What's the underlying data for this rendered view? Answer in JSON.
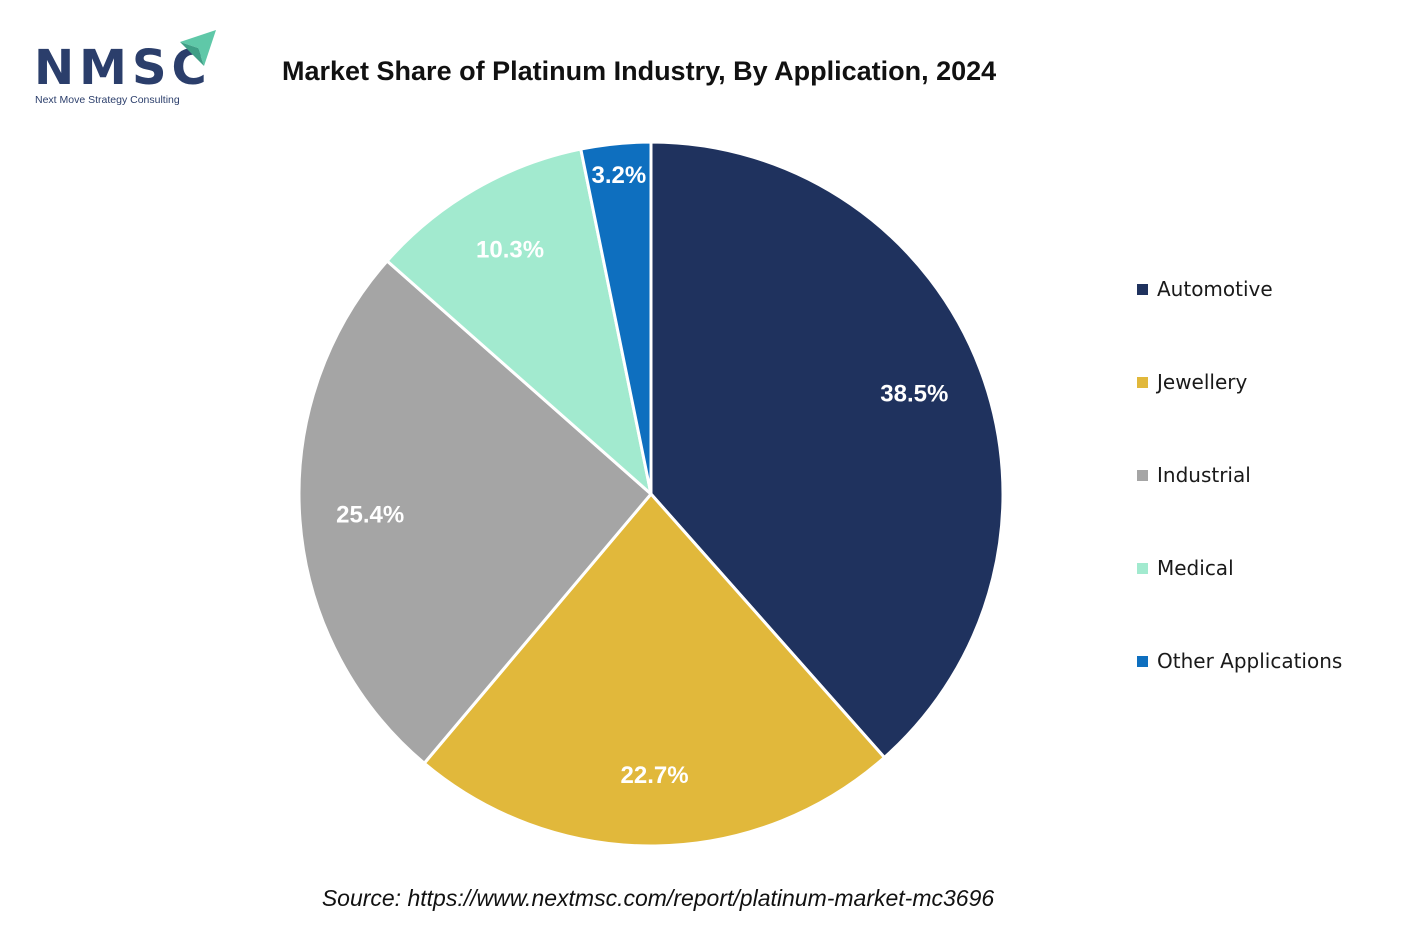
{
  "logo": {
    "letters": "NMSC",
    "tagline": "Next Move Strategy Consulting",
    "brand_color": "#2b3e6b",
    "accent_color": "#5fc8a8",
    "icon": "paper-plane-arrow-icon"
  },
  "source": "Source: https://www.nextmsc.com/report/platinum-market-mc3696",
  "chart_data": {
    "type": "pie",
    "title": "Market Share of Platinum Industry, By Application, 2024",
    "categories": [
      "Automotive",
      "Jewellery",
      "Industrial",
      "Medical",
      "Other Applications"
    ],
    "values": [
      38.5,
      22.7,
      25.4,
      10.3,
      3.2
    ],
    "labels": [
      "38.5%",
      "22.7%",
      "25.4%",
      "10.3%",
      "3.2%"
    ],
    "colors": [
      "#1f325e",
      "#e1b83b",
      "#a5a5a5",
      "#a2eacf",
      "#0e6fbf"
    ],
    "label_colors": [
      "#ffffff",
      "#ffffff",
      "#ffffff",
      "#ffffff",
      "#ffffff"
    ],
    "start": "12 o'clock, clockwise",
    "legend_position": "right"
  }
}
